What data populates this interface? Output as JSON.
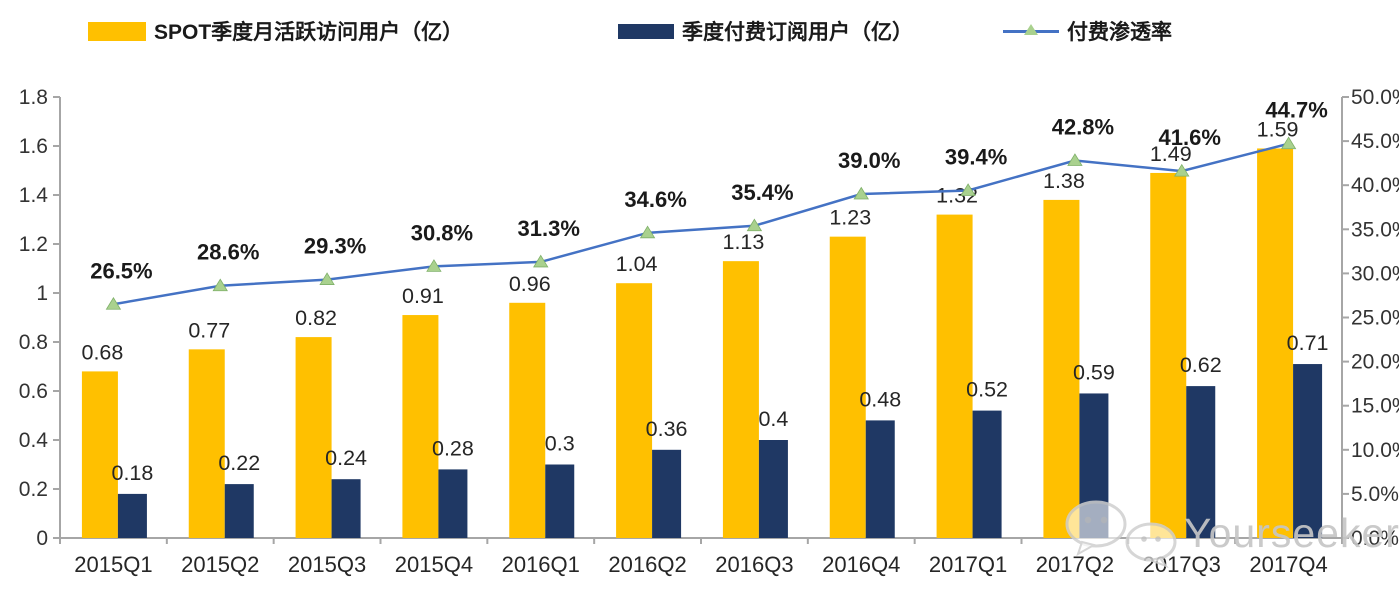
{
  "legend": {
    "items": [
      {
        "label": "SPOT季度月活跃访问用户（亿）",
        "swatch": "bar",
        "color": "#FFC000"
      },
      {
        "label": "季度付费订阅用户（亿）",
        "swatch": "bar",
        "color": "#1F3864"
      },
      {
        "label": "付费渗透率",
        "swatch": "line-triangle-marker",
        "line_color": "#4472C4",
        "marker_color": "#A9D18E"
      }
    ]
  },
  "watermark": {
    "text": "Yourseeker",
    "icon": "wechat-bubbles-icon"
  },
  "palette": {
    "bar_mau": "#FFC000",
    "bar_subs": "#1F3864",
    "line": "#4472C4",
    "marker_fill": "#A9D18E",
    "marker_edge": "#7FB069",
    "axis": "#A6A6A6",
    "tick_text": "#333333",
    "label_text": "#262626"
  },
  "chart_data": {
    "type": "bar",
    "subtype": "grouped-bars-with-line-overlay",
    "categories": [
      "2015Q1",
      "2015Q2",
      "2015Q3",
      "2015Q4",
      "2016Q1",
      "2016Q2",
      "2016Q3",
      "2016Q4",
      "2017Q1",
      "2017Q2",
      "2017Q3",
      "2017Q4"
    ],
    "series": [
      {
        "name": "SPOT季度月活跃访问用户（亿）",
        "type": "bar",
        "axis": "left",
        "color": "#FFC000",
        "values": [
          0.68,
          0.77,
          0.82,
          0.91,
          0.96,
          1.04,
          1.13,
          1.23,
          1.32,
          1.38,
          1.49,
          1.59
        ],
        "labels": [
          "0.68",
          "0.77",
          "0.82",
          "0.91",
          "0.96",
          "1.04",
          "1.13",
          "1.23",
          "1.32",
          "1.38",
          "1.49",
          "1.59"
        ]
      },
      {
        "name": "季度付费订阅用户（亿）",
        "type": "bar",
        "axis": "left",
        "color": "#1F3864",
        "values": [
          0.18,
          0.22,
          0.24,
          0.28,
          0.3,
          0.36,
          0.4,
          0.48,
          0.52,
          0.59,
          0.62,
          0.71
        ],
        "labels": [
          "0.18",
          "0.22",
          "0.24",
          "0.28",
          "0.3",
          "0.36",
          "0.4",
          "0.48",
          "0.52",
          "0.59",
          "0.62",
          "0.71"
        ]
      },
      {
        "name": "付费渗透率",
        "type": "line",
        "axis": "right",
        "color": "#4472C4",
        "marker": "triangle",
        "marker_color": "#A9D18E",
        "values": [
          26.5,
          28.6,
          29.3,
          30.8,
          31.3,
          34.6,
          35.4,
          39.0,
          39.4,
          42.8,
          41.6,
          44.7
        ],
        "labels": [
          "26.5%",
          "28.6%",
          "29.3%",
          "30.8%",
          "31.3%",
          "34.6%",
          "35.4%",
          "39.0%",
          "39.4%",
          "42.8%",
          "41.6%",
          "44.7%"
        ]
      }
    ],
    "left_axis": {
      "min": 0,
      "max": 1.8,
      "step": 0.2,
      "ticks": [
        "0",
        "0.2",
        "0.4",
        "0.6",
        "0.8",
        "1",
        "1.2",
        "1.4",
        "1.6",
        "1.8"
      ]
    },
    "right_axis": {
      "min": 0,
      "max": 50,
      "step": 5,
      "ticks": [
        "0.0%",
        "5.0%",
        "10.0%",
        "15.0%",
        "20.0%",
        "25.0%",
        "30.0%",
        "35.0%",
        "40.0%",
        "45.0%",
        "50.0%"
      ]
    },
    "grid": false,
    "legend_position": "top"
  }
}
